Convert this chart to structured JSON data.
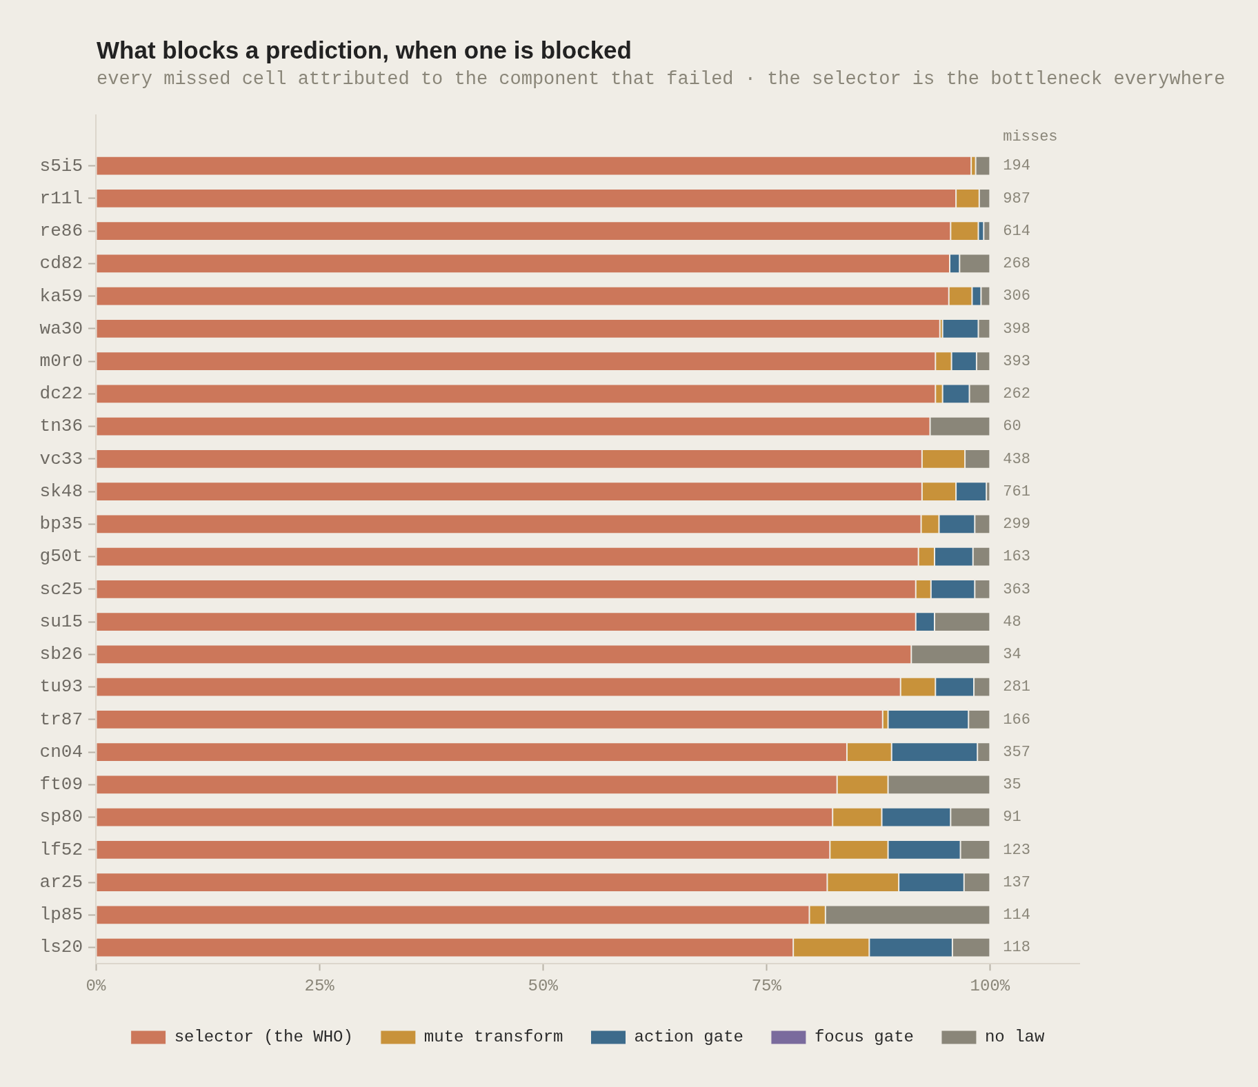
{
  "chart_data": {
    "type": "bar",
    "orientation": "horizontal",
    "stacked": true,
    "title": "What blocks a prediction, when one is blocked",
    "subtitle": "every missed cell attributed to the component that failed · the selector is the bottleneck everywhere",
    "categories": [
      "s5i5",
      "r11l",
      "re86",
      "cd82",
      "ka59",
      "wa30",
      "m0r0",
      "dc22",
      "tn36",
      "vc33",
      "sk48",
      "bp35",
      "g50t",
      "sc25",
      "su15",
      "sb26",
      "tu93",
      "tr87",
      "cn04",
      "ft09",
      "sp80",
      "lf52",
      "ar25",
      "lp85",
      "ls20"
    ],
    "series": [
      {
        "name": "selector (the WHO)",
        "color": "#cc775a",
        "values": [
          97.9,
          96.2,
          95.6,
          95.5,
          95.4,
          94.4,
          93.9,
          93.9,
          93.3,
          92.4,
          92.4,
          92.3,
          92.0,
          91.7,
          91.7,
          91.2,
          90.0,
          88.0,
          84.0,
          82.9,
          82.4,
          82.1,
          81.8,
          79.8,
          78.0
        ]
      },
      {
        "name": "mute transform",
        "color": "#c8923a",
        "values": [
          0.5,
          2.6,
          3.1,
          0,
          2.6,
          0.3,
          1.8,
          0.8,
          0,
          4.8,
          3.8,
          2.0,
          1.8,
          1.7,
          0,
          0,
          3.9,
          0.6,
          5.0,
          5.7,
          5.5,
          6.5,
          8.0,
          1.8,
          8.5
        ]
      },
      {
        "name": "action gate",
        "color": "#3d6b8b",
        "values": [
          0,
          0,
          0.6,
          1.1,
          1.0,
          4.0,
          2.8,
          3.0,
          0,
          0,
          3.4,
          4.0,
          4.3,
          4.9,
          2.1,
          0,
          4.3,
          9.0,
          9.6,
          0,
          7.7,
          8.1,
          7.3,
          0,
          9.3
        ]
      },
      {
        "name": "focus gate",
        "color": "#7a6b9d",
        "values": [
          0,
          0,
          0,
          0,
          0,
          0,
          0,
          0,
          0,
          0,
          0,
          0,
          0,
          0,
          0,
          0,
          0,
          0,
          0,
          0,
          0,
          0,
          0,
          0,
          0
        ]
      },
      {
        "name": "no law",
        "color": "#8a8679",
        "values": [
          1.6,
          1.2,
          0.7,
          3.4,
          1.0,
          1.3,
          1.5,
          2.3,
          6.7,
          2.8,
          0.4,
          1.7,
          1.9,
          1.7,
          6.2,
          8.8,
          1.8,
          2.4,
          1.4,
          11.4,
          4.4,
          3.3,
          2.9,
          18.4,
          4.2
        ]
      }
    ],
    "xlim": [
      0,
      110
    ],
    "xticks": [
      {
        "value": 0,
        "label": "0%"
      },
      {
        "value": 25,
        "label": "25%"
      },
      {
        "value": 50,
        "label": "50%"
      },
      {
        "value": 75,
        "label": "75%"
      },
      {
        "value": 100,
        "label": "100%"
      }
    ],
    "grid": false,
    "legend": "bottom",
    "annotations": [
      "misses",
      "194",
      "987",
      "614",
      "268",
      "306",
      "398",
      "393",
      "262",
      "60",
      "438",
      "761",
      "299",
      "163",
      "363",
      "48",
      "34",
      "281",
      "166",
      "357",
      "35",
      "91",
      "123",
      "137",
      "114",
      "118"
    ]
  }
}
